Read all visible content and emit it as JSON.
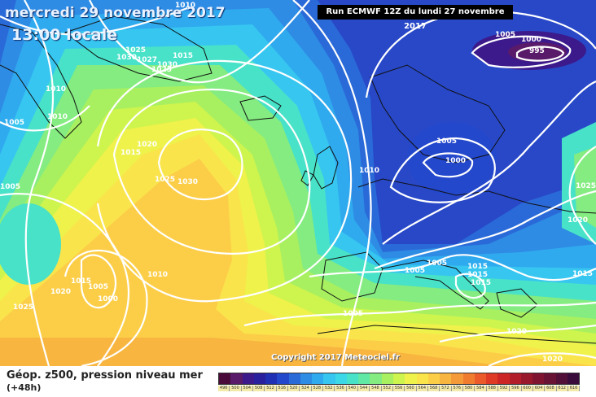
{
  "header": {
    "date_title": "mercredi 29 novembre 2017",
    "time_title": "13:00 locale",
    "run_info": "Run ECMWF 12Z du lundi 27 novembre 2017"
  },
  "copyright": "Copyright 2017 Meteociel.fr",
  "legend": {
    "title": "Géop. z500, pression niveau mer",
    "subtitle": "(+48h)",
    "scale_values": [
      "496",
      "500",
      "504",
      "508",
      "512",
      "516",
      "520",
      "524",
      "528",
      "532",
      "536",
      "540",
      "544",
      "548",
      "552",
      "556",
      "560",
      "564",
      "568",
      "572",
      "576",
      "580",
      "584",
      "588",
      "592",
      "596",
      "600",
      "604",
      "608",
      "612",
      "616"
    ],
    "scale_colors": [
      "#4a0a3a",
      "#5a1a6a",
      "#3c1a8c",
      "#28209c",
      "#2030b4",
      "#2448cc",
      "#2a6ad8",
      "#2e8ce4",
      "#30aaee",
      "#36c6f0",
      "#3cd8e8",
      "#48e2c8",
      "#60e8a4",
      "#84ec80",
      "#a8f060",
      "#cef44e",
      "#eef24a",
      "#fae44c",
      "#fcce48",
      "#f8b640",
      "#f49a38",
      "#f07c30",
      "#ea5a2a",
      "#de3a26",
      "#cc2626",
      "#b21e2a",
      "#98182c",
      "#7e1430",
      "#681234",
      "#521038",
      "#3a0c3c"
    ]
  },
  "map": {
    "pressure_labels": [
      {
        "text": "1010",
        "id": "L1010-a"
      },
      {
        "text": "1025",
        "id": "L1025-a"
      },
      {
        "text": "1030",
        "id": "L1030-a"
      },
      {
        "text": "1027",
        "id": "L1027-a"
      },
      {
        "text": "1030",
        "id": "L1030-b"
      },
      {
        "text": "1025",
        "id": "L1025-b"
      },
      {
        "text": "1015",
        "id": "L1015-a"
      },
      {
        "text": "1010",
        "id": "L1010-b"
      },
      {
        "text": "1010",
        "id": "L1010-c"
      },
      {
        "text": "1005",
        "id": "L1005-a"
      },
      {
        "text": "1020",
        "id": "L1020-a"
      },
      {
        "text": "1015",
        "id": "L1015-b"
      },
      {
        "text": "1025",
        "id": "L1025-c"
      },
      {
        "text": "1030",
        "id": "L1030-c"
      },
      {
        "text": "1010",
        "id": "L1010-d"
      },
      {
        "text": "1005",
        "id": "L1005-b"
      },
      {
        "text": "1000",
        "id": "L1000-a"
      },
      {
        "text": "995",
        "id": "L995-a"
      },
      {
        "text": "1005",
        "id": "L1005-c"
      },
      {
        "text": "1000",
        "id": "L1000-b"
      },
      {
        "text": "1025",
        "id": "L1025-d"
      },
      {
        "text": "1020",
        "id": "L1020-b"
      },
      {
        "text": "1015",
        "id": "L1015-c"
      },
      {
        "text": "1005",
        "id": "L1005-d"
      },
      {
        "text": "1005",
        "id": "L1005-e"
      },
      {
        "text": "1015",
        "id": "L1015-d"
      },
      {
        "text": "1015",
        "id": "L1015-e"
      },
      {
        "text": "1015",
        "id": "L1015-f"
      },
      {
        "text": "1005",
        "id": "L1005-f"
      },
      {
        "text": "1020",
        "id": "L1020-c"
      },
      {
        "text": "1020",
        "id": "L1020-d"
      },
      {
        "text": "1010",
        "id": "L1010-e"
      },
      {
        "text": "1015",
        "id": "L1015-g"
      },
      {
        "text": "1005",
        "id": "L1005-g"
      },
      {
        "text": "1000",
        "id": "L1000-c"
      },
      {
        "text": "1020",
        "id": "L1020-e"
      },
      {
        "text": "1025",
        "id": "L1025-e"
      },
      {
        "text": "1005",
        "id": "L1005-h"
      }
    ]
  }
}
